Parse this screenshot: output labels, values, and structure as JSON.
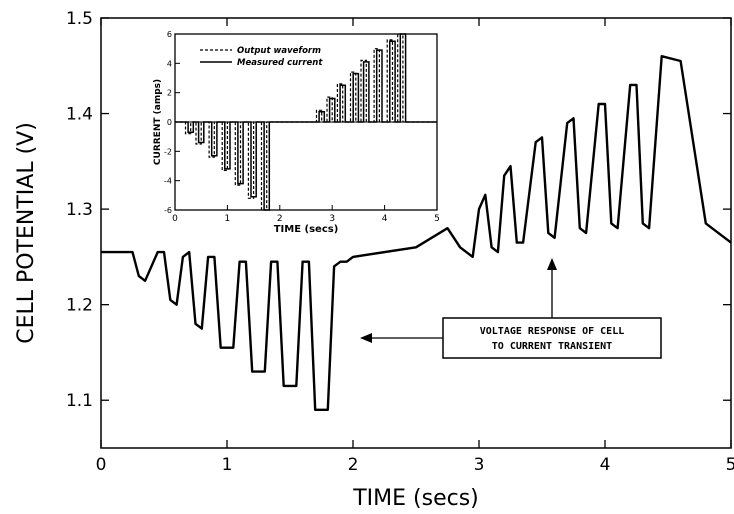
{
  "chart_data": [
    {
      "type": "line",
      "xlabel": "TIME (secs)",
      "ylabel": "CELL POTENTIAL (V)",
      "xlim": [
        0,
        5
      ],
      "ylim": [
        1.05,
        1.5
      ],
      "xticks": [
        "0",
        "1",
        "2",
        "3",
        "4",
        "5"
      ],
      "yticks": [
        "1.1",
        "1.2",
        "1.3",
        "1.4",
        "1.5"
      ],
      "grid": false,
      "series": [
        {
          "x": [
            0,
            0.25,
            0.3,
            0.35,
            0.45,
            0.5,
            0.55,
            0.6,
            0.65,
            0.7,
            0.75,
            0.8,
            0.85,
            0.9,
            0.95,
            1.05,
            1.1,
            1.15,
            1.2,
            1.3,
            1.35,
            1.4,
            1.45,
            1.55,
            1.6,
            1.65,
            1.7,
            1.8,
            1.85,
            1.9,
            1.95,
            2.0,
            2.5,
            2.75,
            2.85,
            2.95,
            3.0,
            3.05,
            3.1,
            3.15,
            3.2,
            3.25,
            3.3,
            3.35,
            3.45,
            3.5,
            3.55,
            3.6,
            3.7,
            3.75,
            3.8,
            3.85,
            3.95,
            4.0,
            4.05,
            4.1,
            4.2,
            4.25,
            4.3,
            4.35,
            4.45,
            4.6,
            4.8,
            5.0
          ],
          "y": [
            1.255,
            1.255,
            1.23,
            1.225,
            1.255,
            1.255,
            1.205,
            1.2,
            1.25,
            1.255,
            1.18,
            1.175,
            1.25,
            1.25,
            1.155,
            1.155,
            1.245,
            1.245,
            1.13,
            1.13,
            1.245,
            1.245,
            1.115,
            1.115,
            1.245,
            1.245,
            1.09,
            1.09,
            1.24,
            1.245,
            1.245,
            1.25,
            1.26,
            1.28,
            1.26,
            1.25,
            1.3,
            1.315,
            1.26,
            1.255,
            1.335,
            1.345,
            1.265,
            1.265,
            1.37,
            1.375,
            1.275,
            1.27,
            1.39,
            1.395,
            1.28,
            1.275,
            1.41,
            1.41,
            1.285,
            1.28,
            1.43,
            1.43,
            1.285,
            1.28,
            1.46,
            1.455,
            1.285,
            1.265
          ]
        }
      ],
      "annotations": [
        {
          "text": "VOLTAGE RESPONSE OF CELL",
          "line": 1
        },
        {
          "text": "TO CURRENT TRANSIENT",
          "line": 2
        }
      ]
    },
    {
      "type": "line",
      "xlabel": "TIME (secs)",
      "ylabel": "CURRENT (amps)",
      "xlim": [
        0,
        5
      ],
      "ylim": [
        -6,
        6
      ],
      "xticks": [
        "0",
        "1",
        "2",
        "3",
        "4",
        "5"
      ],
      "yticks": [
        "-6",
        "-4",
        "-2",
        "0",
        "2",
        "4",
        "6"
      ],
      "legend_position": "top-left",
      "series": [
        {
          "name": "Output waveform",
          "style": "dashed",
          "pulses": [
            {
              "start": 0.2,
              "end": 0.3,
              "amp": -0.8
            },
            {
              "start": 0.4,
              "end": 0.5,
              "amp": -1.5
            },
            {
              "start": 0.65,
              "end": 0.75,
              "amp": -2.4
            },
            {
              "start": 0.9,
              "end": 1.0,
              "amp": -3.3
            },
            {
              "start": 1.15,
              "end": 1.25,
              "amp": -4.3
            },
            {
              "start": 1.4,
              "end": 1.5,
              "amp": -5.2
            },
            {
              "start": 1.65,
              "end": 1.75,
              "amp": -6.0
            },
            {
              "start": 2.7,
              "end": 2.8,
              "amp": 0.8
            },
            {
              "start": 2.9,
              "end": 3.0,
              "amp": 1.7
            },
            {
              "start": 3.1,
              "end": 3.2,
              "amp": 2.6
            },
            {
              "start": 3.35,
              "end": 3.45,
              "amp": 3.4
            },
            {
              "start": 3.55,
              "end": 3.65,
              "amp": 4.2
            },
            {
              "start": 3.8,
              "end": 3.9,
              "amp": 5.0
            },
            {
              "start": 4.05,
              "end": 4.15,
              "amp": 5.6
            },
            {
              "start": 4.25,
              "end": 4.35,
              "amp": 6.0
            }
          ]
        },
        {
          "name": "Measured current",
          "style": "solid",
          "pulses": [
            {
              "start": 0.25,
              "end": 0.35,
              "amp": -0.7
            },
            {
              "start": 0.45,
              "end": 0.55,
              "amp": -1.4
            },
            {
              "start": 0.7,
              "end": 0.8,
              "amp": -2.3
            },
            {
              "start": 0.95,
              "end": 1.05,
              "amp": -3.2
            },
            {
              "start": 1.2,
              "end": 1.3,
              "amp": -4.2
            },
            {
              "start": 1.45,
              "end": 1.55,
              "amp": -5.1
            },
            {
              "start": 1.7,
              "end": 1.8,
              "amp": -6.0
            },
            {
              "start": 2.75,
              "end": 2.85,
              "amp": 0.7
            },
            {
              "start": 2.95,
              "end": 3.05,
              "amp": 1.6
            },
            {
              "start": 3.15,
              "end": 3.25,
              "amp": 2.5
            },
            {
              "start": 3.4,
              "end": 3.5,
              "amp": 3.3
            },
            {
              "start": 3.6,
              "end": 3.7,
              "amp": 4.1
            },
            {
              "start": 3.85,
              "end": 3.95,
              "amp": 4.9
            },
            {
              "start": 4.1,
              "end": 4.2,
              "amp": 5.5
            },
            {
              "start": 4.3,
              "end": 4.4,
              "amp": 6.0
            }
          ]
        }
      ]
    }
  ]
}
